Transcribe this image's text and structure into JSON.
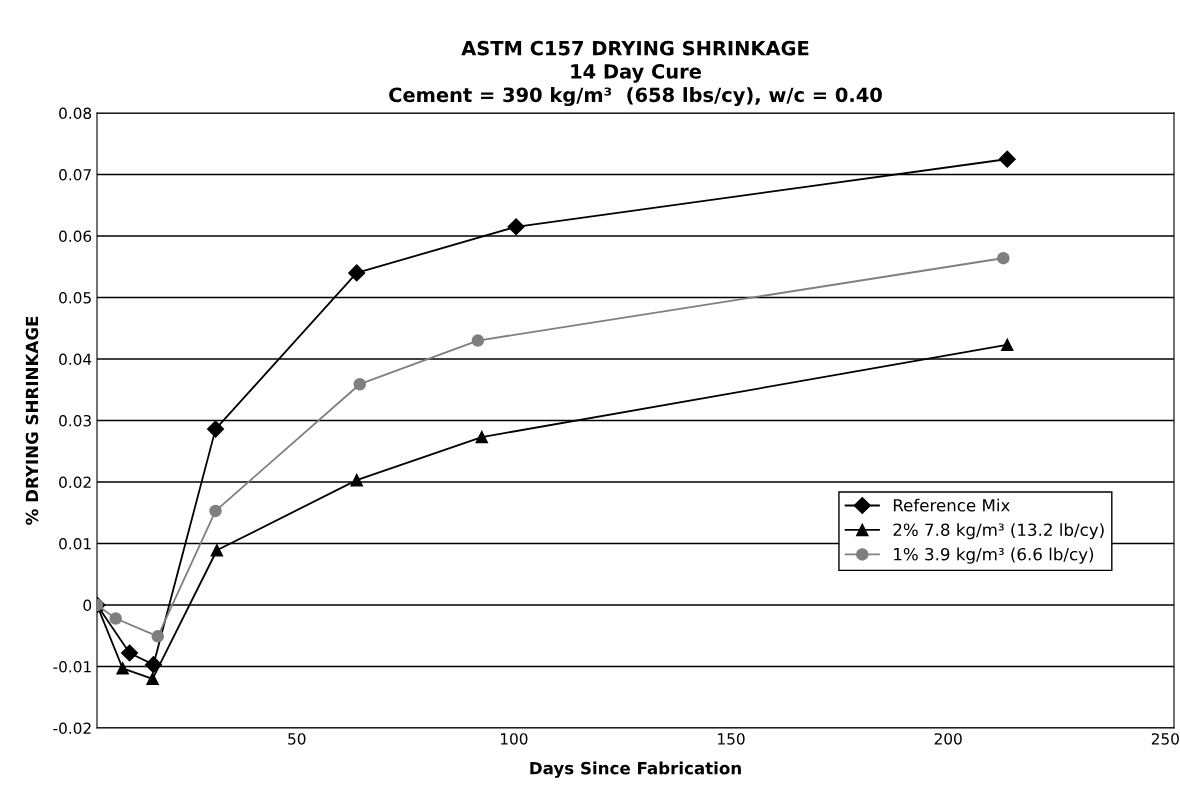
{
  "chart_data": {
    "type": "line",
    "title": "ASTM C157 DRYING SHRINKAGE\n14 Day Cure\nCement = 390 kg/m³  (658 lbs/cy), w/c = 0.40",
    "xlabel": "Days Since Fabrication",
    "ylabel": "% DRYING SHRINKAGE",
    "series": [
      {
        "name": "Reference Mix",
        "color": "#000000",
        "marker": "diamond",
        "x": [
          4,
          11.5,
          17,
          31.3,
          63.8,
          100.5,
          213.6
        ],
        "values": [
          0,
          -0.0078,
          -0.0097,
          0.0286,
          0.054,
          0.0615,
          0.0725
        ]
      },
      {
        "name": "2% 7.8 kg/m³ (13.2 lb/cy)",
        "color": "#000000",
        "marker": "triangle",
        "x": [
          4,
          9.9,
          16.8,
          31.6,
          63.8,
          92.6,
          213.6
        ],
        "values": [
          0,
          -0.0103,
          -0.012,
          0.0089,
          0.0203,
          0.0273,
          0.0423
        ]
      },
      {
        "name": "1% 3.9 kg/m³ (6.6 lb/cy)",
        "color": "#7f7f7f",
        "marker": "circle",
        "x": [
          4,
          8.3,
          18,
          31.3,
          64.5,
          91.7,
          212.7
        ],
        "values": [
          0,
          -0.0022,
          -0.0051,
          0.0153,
          0.0359,
          0.043,
          0.0564
        ]
      }
    ],
    "xlim": [
      4,
      252
    ],
    "xticks": [
      50,
      100,
      150,
      200,
      250
    ],
    "ylim": [
      -0.02,
      0.08
    ],
    "yticks": [
      -0.02,
      -0.01,
      0,
      0.01,
      0.02,
      0.03,
      0.04,
      0.05,
      0.06,
      0.07,
      0.08
    ],
    "grid": "y",
    "legend": "right",
    "line_style": "solid"
  }
}
